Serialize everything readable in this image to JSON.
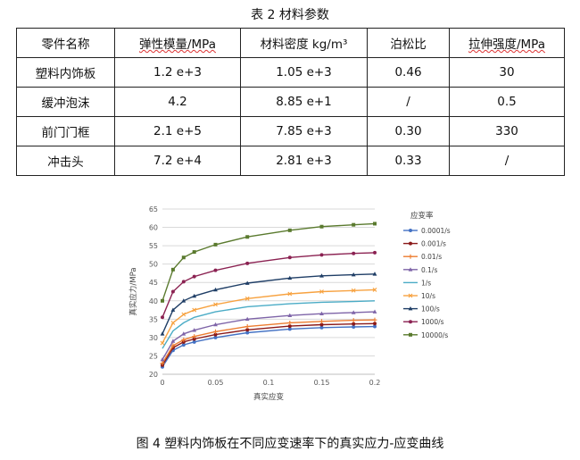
{
  "table_caption": "表 2 材料参数",
  "table": {
    "headers": [
      "零件名称",
      "弹性模量/MPa",
      "材料密度 kg/m³",
      "泊松比",
      "拉伸强度/MPa"
    ],
    "rows": [
      [
        "塑料内饰板",
        "1.2 e+3",
        "1.05 e+3",
        "0.46",
        "30"
      ],
      [
        "缓冲泡沫",
        "4.2",
        "8.85 e+1",
        "/",
        "0.5"
      ],
      [
        "前门门框",
        "2.1 e+5",
        "7.85 e+3",
        "0.30",
        "330"
      ],
      [
        "冲击头",
        "7.2 e+4",
        "2.81 e+3",
        "0.33",
        "/"
      ]
    ]
  },
  "figure_caption": "图 4  塑料内饰板在不同应变速率下的真实应力-应变曲线",
  "chart_data": {
    "type": "line",
    "title": "",
    "xlabel": "真实应变",
    "ylabel": "真实应力/MPa",
    "xlim": [
      0,
      0.2
    ],
    "ylim": [
      20,
      65
    ],
    "x_ticks": [
      "0",
      "0.05",
      "0.1",
      "0.15",
      "0.2"
    ],
    "y_ticks": [
      "20",
      "25",
      "30",
      "35",
      "40",
      "45",
      "50",
      "55",
      "60",
      "65"
    ],
    "grid": "horizontal",
    "legend_title": "应变率",
    "legend_position": "right",
    "x": [
      0,
      0.01,
      0.02,
      0.03,
      0.05,
      0.08,
      0.12,
      0.15,
      0.18,
      0.2
    ],
    "series": [
      {
        "name": "0.0001/s",
        "color": "#4472c4",
        "marker": "circle",
        "values": [
          22.0,
          26.5,
          28.0,
          28.8,
          30.0,
          31.3,
          32.3,
          32.7,
          32.9,
          33.0
        ]
      },
      {
        "name": "0.001/s",
        "color": "#8b1a1a",
        "marker": "circle",
        "values": [
          22.5,
          27.2,
          28.8,
          29.6,
          30.8,
          32.1,
          33.1,
          33.5,
          33.7,
          33.8
        ]
      },
      {
        "name": "0.01/s",
        "color": "#ed7d31",
        "marker": "plus",
        "values": [
          23.0,
          27.8,
          29.4,
          30.3,
          31.6,
          33.0,
          34.0,
          34.4,
          34.7,
          34.8
        ]
      },
      {
        "name": "0.1/s",
        "color": "#7e64a8",
        "marker": "triangle",
        "values": [
          24.0,
          29.0,
          31.0,
          32.0,
          33.5,
          35.0,
          36.0,
          36.5,
          36.8,
          37.0
        ]
      },
      {
        "name": "1/s",
        "color": "#4bacc6",
        "marker": "none",
        "values": [
          27.0,
          31.8,
          34.0,
          35.5,
          37.0,
          38.4,
          39.2,
          39.6,
          39.8,
          40.0
        ]
      },
      {
        "name": "10/s",
        "color": "#f7a240",
        "marker": "cross",
        "values": [
          28.5,
          34.0,
          36.3,
          37.5,
          39.0,
          40.6,
          41.9,
          42.5,
          42.8,
          43.0
        ]
      },
      {
        "name": "100/s",
        "color": "#1f3e66",
        "marker": "triangle",
        "values": [
          31.0,
          37.5,
          40.0,
          41.3,
          43.0,
          44.8,
          46.2,
          46.8,
          47.1,
          47.3
        ]
      },
      {
        "name": "1000/s",
        "color": "#8b2252",
        "marker": "circle",
        "values": [
          35.5,
          42.5,
          45.2,
          46.6,
          48.3,
          50.2,
          51.8,
          52.5,
          52.9,
          53.1
        ]
      },
      {
        "name": "10000/s",
        "color": "#5a7a2e",
        "marker": "square",
        "values": [
          40.0,
          48.5,
          51.8,
          53.3,
          55.3,
          57.4,
          59.2,
          60.2,
          60.7,
          61.0
        ]
      }
    ]
  }
}
